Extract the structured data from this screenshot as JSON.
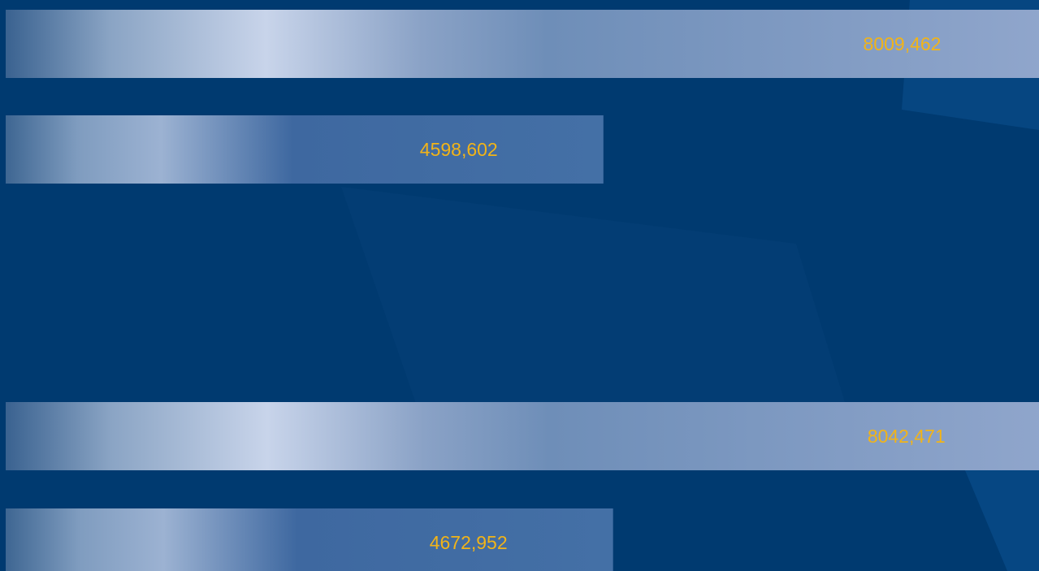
{
  "chart_data": {
    "type": "bar",
    "orientation": "horizontal",
    "values": [
      8009.462,
      4598.602,
      8042.471,
      4672.952
    ],
    "value_labels": [
      "8009,462",
      "4598,602",
      "8042,471",
      "4672,952"
    ],
    "xlim": [
      0,
      7950
    ]
  }
}
